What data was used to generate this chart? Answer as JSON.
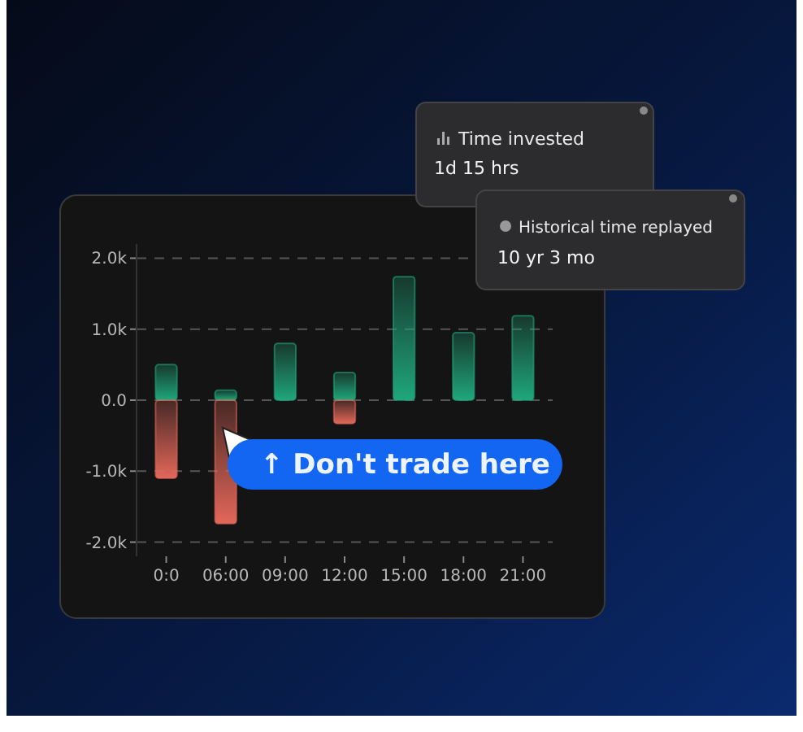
{
  "chart_data": {
    "type": "bar",
    "stacked": true,
    "categories": [
      "0:0",
      "06:00",
      "09:00",
      "12:00",
      "15:00",
      "18:00",
      "21:00"
    ],
    "series": [
      {
        "color": "#1fa77b",
        "values": [
          500,
          140,
          800,
          390,
          1740,
          950,
          1190
        ]
      },
      {
        "color": "#e3675a",
        "values": [
          -1100,
          -1740,
          null,
          -330,
          null,
          null,
          null
        ]
      }
    ],
    "ylim": [
      -2200,
      2200
    ],
    "yticks": [
      {
        "value": 2000,
        "label": "2.0k"
      },
      {
        "value": 1000,
        "label": "1.0k"
      },
      {
        "value": 0,
        "label": "0.0"
      },
      {
        "value": -1000,
        "label": "-1.0k"
      },
      {
        "value": -2000,
        "label": "-2.0k"
      }
    ],
    "grid": "y",
    "annotations": [
      "Time invested",
      "1d 15 hrs",
      "Historical time replayed",
      "10 yr 3 mo",
      "↑ Don't trade here"
    ]
  }
}
